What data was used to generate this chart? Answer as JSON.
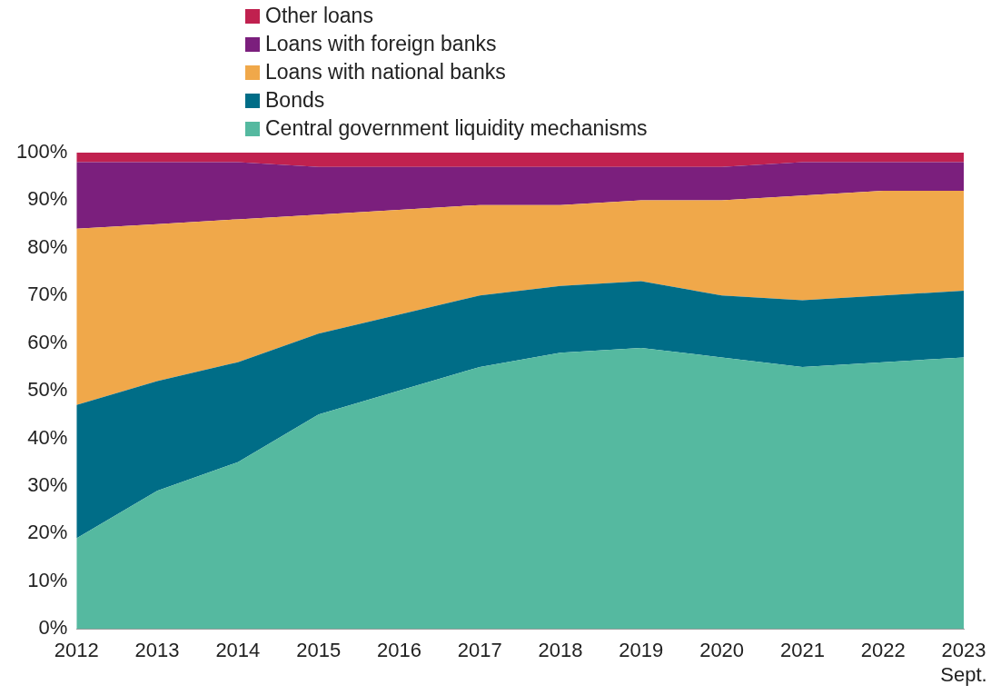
{
  "chart_data": {
    "type": "area",
    "stacked": true,
    "legend": "top",
    "grid": false,
    "categories": [
      "2012",
      "2013",
      "2014",
      "2015",
      "2016",
      "2017",
      "2018",
      "2019",
      "2020",
      "2021",
      "2022",
      "2023 Sept."
    ],
    "series": [
      {
        "name": "Central government liquidity mechanisms",
        "color": "#55b9a0",
        "values": [
          19,
          29,
          35,
          45,
          50,
          55,
          58,
          59,
          57,
          55,
          56,
          57
        ]
      },
      {
        "name": "Bonds",
        "color": "#006d87",
        "values": [
          28,
          23,
          21,
          17,
          16,
          15,
          14,
          14,
          13,
          14,
          14,
          14
        ]
      },
      {
        "name": "Loans with national banks",
        "color": "#f0a84a",
        "values": [
          37,
          33,
          30,
          25,
          22,
          19,
          17,
          17,
          20,
          22,
          22,
          21
        ]
      },
      {
        "name": "Loans with foreign banks",
        "color": "#7b1f7d",
        "values": [
          14,
          13,
          12,
          10,
          9,
          8,
          8,
          7,
          7,
          7,
          6,
          6
        ]
      },
      {
        "name": "Other loans",
        "color": "#c0214f",
        "values": [
          2,
          2,
          2,
          3,
          3,
          3,
          3,
          3,
          3,
          2,
          2,
          2
        ]
      }
    ],
    "ylim": [
      0,
      100
    ],
    "yticks": [
      {
        "value": 0,
        "label": "0%"
      },
      {
        "value": 10,
        "label": "10%"
      },
      {
        "value": 20,
        "label": "20%"
      },
      {
        "value": 30,
        "label": "30%"
      },
      {
        "value": 40,
        "label": "40%"
      },
      {
        "value": 50,
        "label": "50%"
      },
      {
        "value": 60,
        "label": "60%"
      },
      {
        "value": 70,
        "label": "70%"
      },
      {
        "value": 80,
        "label": "80%"
      },
      {
        "value": 90,
        "label": "90%"
      },
      {
        "value": 100,
        "label": "100%"
      }
    ]
  }
}
